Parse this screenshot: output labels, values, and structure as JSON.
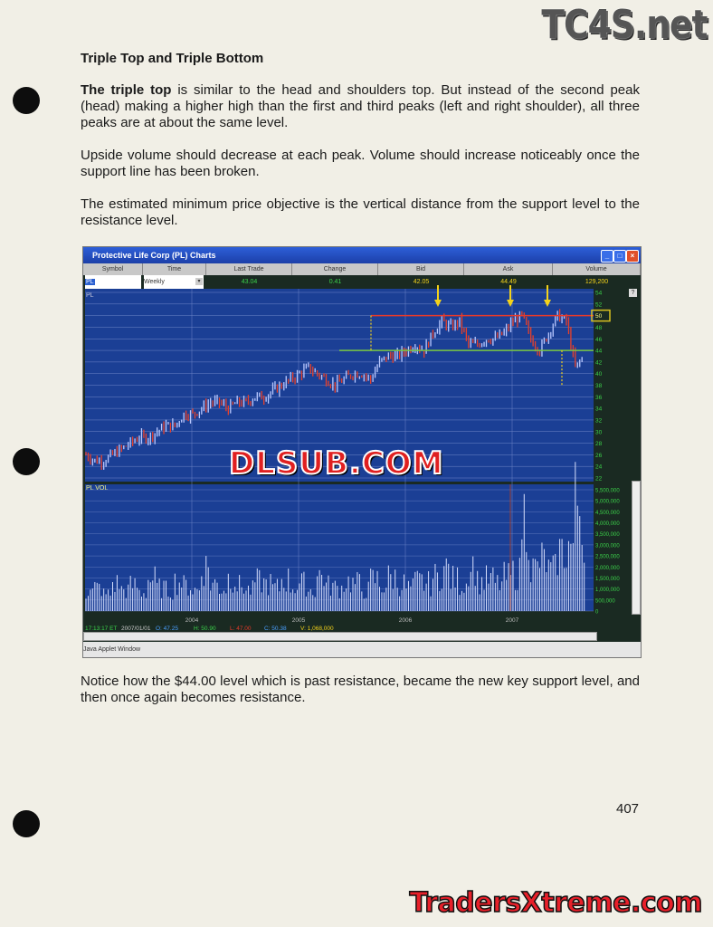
{
  "logos": {
    "top": "TC4S.net",
    "bottom": "TradersXtreme.com",
    "watermark": "DLSUB.COM"
  },
  "heading": "Triple Top and Triple Bottom",
  "paragraphs": {
    "p1_bold": "The triple top",
    "p1_rest": " is similar to the head and shoulders top.  But instead of the second peak (head) making a higher high than the first and third peaks (left and right shoulder), all three peaks are at about the same level.",
    "p2": "Upside volume should decrease at each peak.  Volume should increase noticeably once the support line has been broken.",
    "p3": "The estimated minimum price objective is the vertical distance from the support level to the resistance level.",
    "p4": "Notice how the $44.00 level which is past resistance, became the new key support level, and then once again becomes resistance."
  },
  "page_number": "407",
  "chart_window": {
    "title": "Protective Life Corp (PL) Charts",
    "columns": [
      "Symbol",
      "Time",
      "Last Trade",
      "Change",
      "Bid",
      "Ask",
      "Volume"
    ],
    "symbol_value": "PL",
    "time_value": "Weekly",
    "last_trade": "43.04",
    "change": "0.41",
    "bid": "42.05",
    "ask": "44.49",
    "volume": "129,200",
    "price_panel_label": "PL",
    "volume_panel_label": "PL VOL",
    "status": {
      "time": "17:13:17 ET",
      "date": "2007/01/01",
      "o": "O: 47.25",
      "h": "H: 50.90",
      "l": "L: 47.00",
      "c": "C: 50.38",
      "v": "V: 1,068,000"
    },
    "applet_label": "Java Applet Window",
    "help_button": "?",
    "colors": {
      "panel": "#1b3f95",
      "resistance": "#e83a2a",
      "support": "#7ac943",
      "arrow": "#f3d21a",
      "up_bar": "#b9c8ff",
      "down_bar": "#e8402a",
      "axis_text": "#3bd24a"
    }
  },
  "chart_data": {
    "type": "candlestick",
    "interval": "monthly approximation of weekly chart",
    "x_start": "2003-01",
    "x_ticks": [
      "2004",
      "2005",
      "2006",
      "2007"
    ],
    "price_ylim": [
      22,
      54
    ],
    "price_ticks": [
      54,
      52,
      50,
      48,
      46,
      44,
      42,
      40,
      38,
      36,
      34,
      32,
      30,
      28,
      26,
      24,
      22
    ],
    "closes": [
      26,
      25,
      25,
      26,
      27,
      28,
      29,
      29,
      30,
      31,
      31,
      33,
      33,
      34,
      35,
      35,
      34,
      35,
      35,
      36,
      36,
      37,
      38,
      39,
      40,
      41,
      40,
      39,
      38,
      39,
      40,
      40,
      39,
      42,
      43,
      43,
      44,
      45,
      44,
      47,
      49,
      48,
      49,
      45,
      45,
      46,
      46,
      47,
      49,
      50,
      46,
      44,
      47,
      50,
      49,
      41,
      43
    ],
    "resistance_level": 50,
    "support_level": 44,
    "highlighted_label": "50",
    "volume_ylim": [
      0,
      5500000
    ],
    "volume_ticks": [
      "5,500,000",
      "5,000,000",
      "4,500,000",
      "4,000,000",
      "3,500,000",
      "3,000,000",
      "2,500,000",
      "2,000,000",
      "1,500,000",
      "1,000,000",
      "500,000",
      "0"
    ],
    "volume": [
      900,
      1100,
      800,
      1300,
      1000,
      1200,
      900,
      1500,
      1100,
      1000,
      1400,
      1200,
      1000,
      2100,
      1300,
      1100,
      1600,
      1200,
      1000,
      1400,
      1300,
      1100,
      1500,
      1200,
      1300,
      1000,
      1700,
      1200,
      1100,
      1400,
      1300,
      1000,
      1500,
      1200,
      1600,
      1300,
      1100,
      1400,
      1300,
      1600,
      2000,
      1500,
      1300,
      2200,
      1400,
      1500,
      1300,
      1600,
      1800,
      4500,
      2000,
      2400,
      1900,
      2800,
      3100,
      5200,
      2500
    ]
  }
}
